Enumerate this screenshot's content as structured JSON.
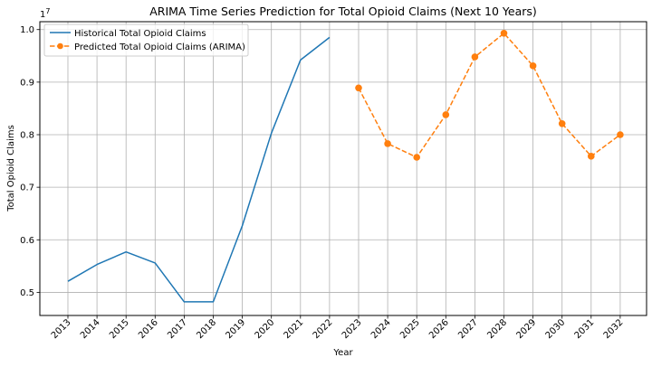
{
  "chart_data": {
    "type": "line",
    "title": "ARIMA Time Series Prediction for Total Opioid Claims (Next 10 Years)",
    "xlabel": "Year",
    "ylabel": "Total Opioid Claims",
    "y_offset_text": "1e7",
    "categories": [
      "2013",
      "2014",
      "2015",
      "2016",
      "2017",
      "2018",
      "2019",
      "2020",
      "2021",
      "2022",
      "2023",
      "2024",
      "2025",
      "2026",
      "2027",
      "2028",
      "2029",
      "2030",
      "2031",
      "2032"
    ],
    "yticks": [
      "0.5",
      "0.6",
      "0.7",
      "0.8",
      "0.9",
      "1.0"
    ],
    "ylim": [
      0.456,
      1.015
    ],
    "grid": true,
    "legend_position": "top-left",
    "series": [
      {
        "name": "Historical Total Opioid Claims",
        "color": "#1f77b4",
        "style": "solid",
        "marker": "none",
        "x": [
          "2013",
          "2014",
          "2015",
          "2016",
          "2017",
          "2018",
          "2019",
          "2020",
          "2021",
          "2022"
        ],
        "values": [
          0.521,
          0.553,
          0.577,
          0.556,
          0.482,
          0.482,
          0.627,
          0.803,
          0.942,
          0.985
        ]
      },
      {
        "name": "Predicted Total Opioid Claims (ARIMA)",
        "color": "#ff7f0e",
        "style": "dashed",
        "marker": "circle",
        "x": [
          "2023",
          "2024",
          "2025",
          "2026",
          "2027",
          "2028",
          "2029",
          "2030",
          "2031",
          "2032"
        ],
        "values": [
          0.889,
          0.783,
          0.757,
          0.838,
          0.948,
          0.993,
          0.931,
          0.821,
          0.759,
          0.8
        ]
      }
    ]
  }
}
